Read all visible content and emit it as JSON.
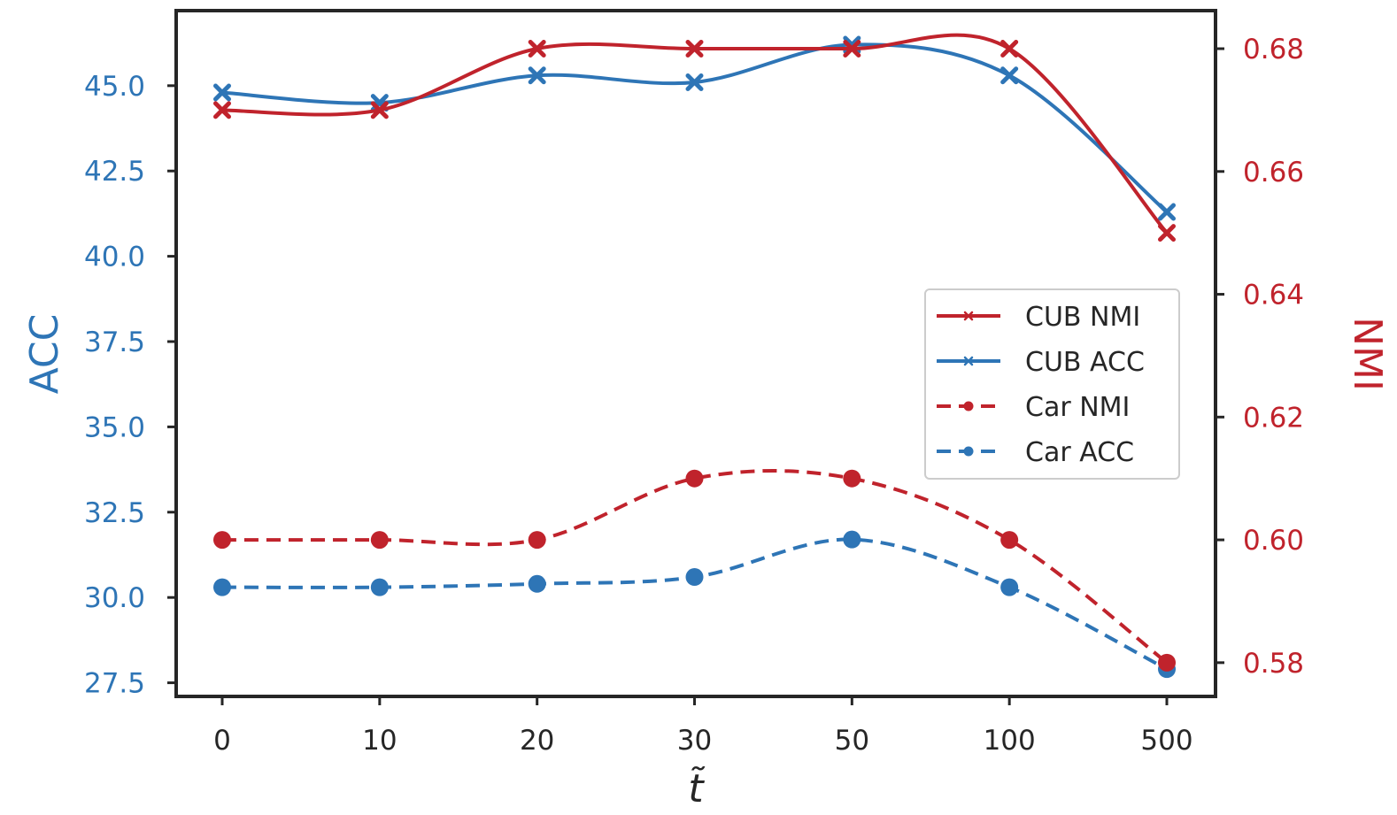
{
  "chart_data": {
    "type": "line",
    "title": "",
    "xlabel": "t̃",
    "ylabel_left": "ACC",
    "ylabel_right": "NMI",
    "categories": [
      "0",
      "10",
      "20",
      "30",
      "50",
      "100",
      "500"
    ],
    "left_axis": {
      "ylim": [
        27.1,
        47.2
      ],
      "ticks": [
        "27.5",
        "30.0",
        "32.5",
        "35.0",
        "37.5",
        "40.0",
        "42.5",
        "45.0"
      ],
      "color": "#2e75b6"
    },
    "right_axis": {
      "ylim": [
        0.5745,
        0.6862
      ],
      "ticks": [
        "0.58",
        "0.60",
        "0.62",
        "0.64",
        "0.66",
        "0.68"
      ],
      "color": "#c0232c"
    },
    "series": [
      {
        "name": "CUB NMI",
        "axis": "right",
        "style": "solid",
        "marker": "x",
        "color": "#c0232c",
        "values": [
          0.67,
          0.67,
          0.68,
          0.68,
          0.68,
          0.68,
          0.65
        ]
      },
      {
        "name": "CUB ACC",
        "axis": "left",
        "style": "solid",
        "marker": "x",
        "color": "#2e75b6",
        "values": [
          44.8,
          44.5,
          45.3,
          45.1,
          46.2,
          45.3,
          41.3
        ]
      },
      {
        "name": "Car NMI",
        "axis": "right",
        "style": "dashed",
        "marker": "o",
        "color": "#c0232c",
        "values": [
          0.6,
          0.6,
          0.6,
          0.61,
          0.61,
          0.6,
          0.58
        ]
      },
      {
        "name": "Car ACC",
        "axis": "left",
        "style": "dashed",
        "marker": "o",
        "color": "#2e75b6",
        "values": [
          30.3,
          30.3,
          30.4,
          30.6,
          31.7,
          30.3,
          27.9
        ]
      }
    ],
    "legend": {
      "position": "center-right",
      "entries": [
        "CUB NMI",
        "CUB ACC",
        "Car NMI",
        "Car ACC"
      ]
    },
    "grid": false
  }
}
